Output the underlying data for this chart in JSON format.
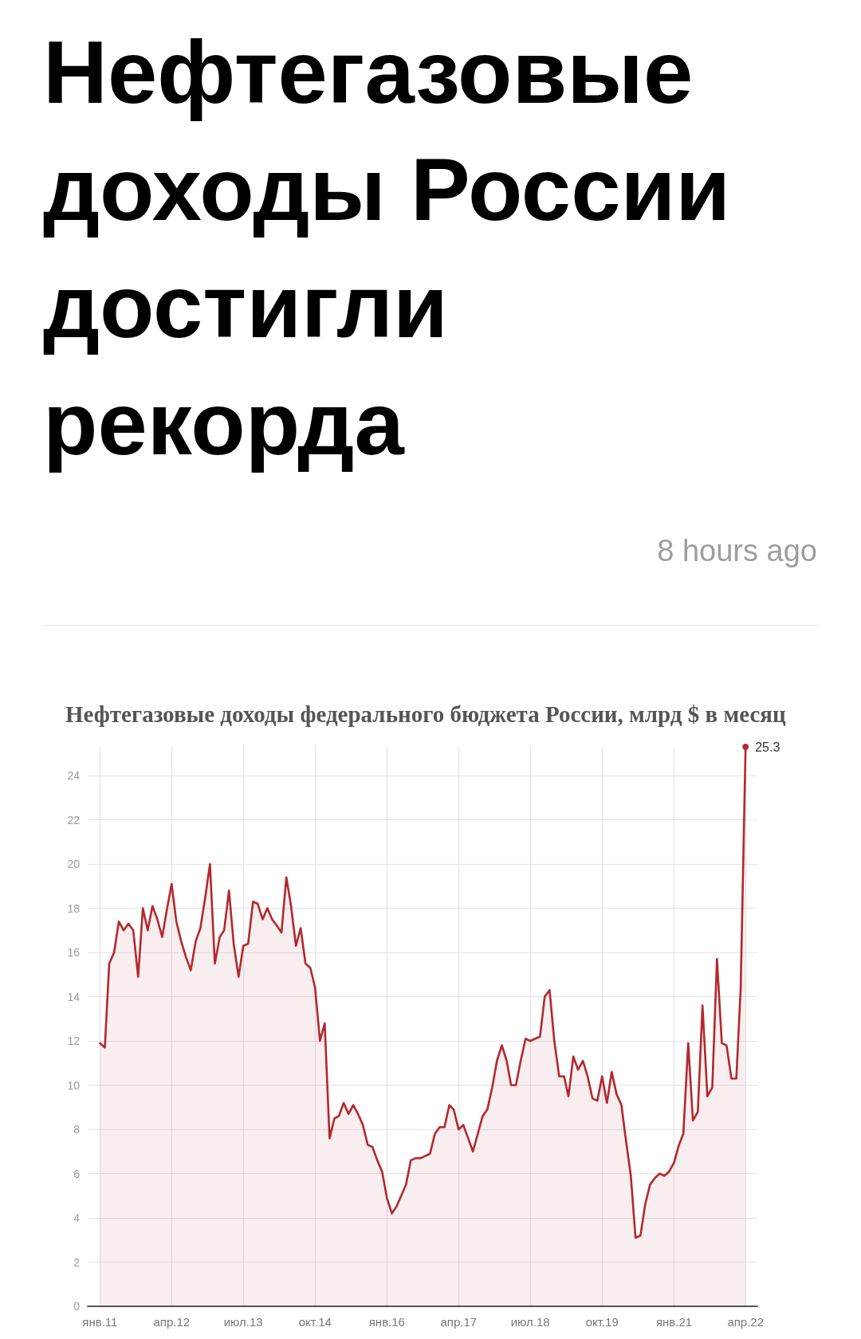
{
  "chart_data": {
    "type": "area",
    "title": "Нефтегазовые доходы России достигли рекорда",
    "subtitle": "Нефтегазовые доходы федерального бюджета России, млрд $ в месяц",
    "annotations": [
      "8 hours ago"
    ],
    "x": [
      "2011-01",
      "2011-02",
      "2011-03",
      "2011-04",
      "2011-05",
      "2011-06",
      "2011-07",
      "2011-08",
      "2011-09",
      "2011-10",
      "2011-11",
      "2011-12",
      "2012-01",
      "2012-02",
      "2012-03",
      "2012-04",
      "2012-05",
      "2012-06",
      "2012-07",
      "2012-08",
      "2012-09",
      "2012-10",
      "2012-11",
      "2012-12",
      "2013-01",
      "2013-02",
      "2013-03",
      "2013-04",
      "2013-05",
      "2013-06",
      "2013-07",
      "2013-08",
      "2013-09",
      "2013-10",
      "2013-11",
      "2013-12",
      "2014-01",
      "2014-02",
      "2014-03",
      "2014-04",
      "2014-05",
      "2014-06",
      "2014-07",
      "2014-08",
      "2014-09",
      "2014-10",
      "2014-11",
      "2014-12",
      "2015-01",
      "2015-02",
      "2015-03",
      "2015-04",
      "2015-05",
      "2015-06",
      "2015-07",
      "2015-08",
      "2015-09",
      "2015-10",
      "2015-11",
      "2015-12",
      "2016-01",
      "2016-02",
      "2016-03",
      "2016-04",
      "2016-05",
      "2016-06",
      "2016-07",
      "2016-08",
      "2016-09",
      "2016-10",
      "2016-11",
      "2016-12",
      "2017-01",
      "2017-02",
      "2017-03",
      "2017-04",
      "2017-05",
      "2017-06",
      "2017-07",
      "2017-08",
      "2017-09",
      "2017-10",
      "2017-11",
      "2017-12",
      "2018-01",
      "2018-02",
      "2018-03",
      "2018-04",
      "2018-05",
      "2018-06",
      "2018-07",
      "2018-08",
      "2018-09",
      "2018-10",
      "2018-11",
      "2018-12",
      "2019-01",
      "2019-02",
      "2019-03",
      "2019-04",
      "2019-05",
      "2019-06",
      "2019-07",
      "2019-08",
      "2019-09",
      "2019-10",
      "2019-11",
      "2019-12",
      "2020-01",
      "2020-02",
      "2020-03",
      "2020-04",
      "2020-05",
      "2020-06",
      "2020-07",
      "2020-08",
      "2020-09",
      "2020-10",
      "2020-11",
      "2020-12",
      "2021-01",
      "2021-02",
      "2021-03",
      "2021-04",
      "2021-05",
      "2021-06",
      "2021-07",
      "2021-08",
      "2021-09",
      "2021-10",
      "2021-11",
      "2021-12",
      "2022-01",
      "2022-02",
      "2022-03",
      "2022-04"
    ],
    "series": [
      {
        "color": "#b3282d",
        "values": [
          11.9,
          11.7,
          15.5,
          16.0,
          17.4,
          17.0,
          17.3,
          17.0,
          14.9,
          18.0,
          17.0,
          18.1,
          17.5,
          16.7,
          17.9,
          19.1,
          17.4,
          16.5,
          15.8,
          15.2,
          16.5,
          17.1,
          18.5,
          20.0,
          15.5,
          16.7,
          17.0,
          18.8,
          16.4,
          14.9,
          16.3,
          16.4,
          18.3,
          18.2,
          17.5,
          18.0,
          17.5,
          17.2,
          16.9,
          19.4,
          18.1,
          16.3,
          17.1,
          15.5,
          15.3,
          14.4,
          12.0,
          12.8,
          7.6,
          8.5,
          8.6,
          9.2,
          8.7,
          9.1,
          8.7,
          8.2,
          7.3,
          7.2,
          6.6,
          6.1,
          4.9,
          4.2,
          4.5,
          5.0,
          5.5,
          6.6,
          6.7,
          6.7,
          6.8,
          6.9,
          7.8,
          8.1,
          8.1,
          9.1,
          8.9,
          8.0,
          8.2,
          7.6,
          7.0,
          7.8,
          8.6,
          8.9,
          9.9,
          11.1,
          11.8,
          11.1,
          10.0,
          10.0,
          11.1,
          12.1,
          12.0,
          12.1,
          12.2,
          14.0,
          14.3,
          12.0,
          10.4,
          10.4,
          9.5,
          11.3,
          10.7,
          11.1,
          10.4,
          9.4,
          9.3,
          10.4,
          9.2,
          10.6,
          9.6,
          9.1,
          7.5,
          5.9,
          3.1,
          3.2,
          4.6,
          5.5,
          5.8,
          6.0,
          5.9,
          6.1,
          6.5,
          7.3,
          7.8,
          11.9,
          8.4,
          8.8,
          13.6,
          9.5,
          9.9,
          15.7,
          11.9,
          11.8,
          10.3,
          10.3,
          14.4,
          25.3
        ],
        "value_labels": [
          null,
          null,
          null,
          null,
          null,
          null,
          null,
          null,
          null,
          null,
          null,
          null,
          null,
          null,
          null,
          null,
          null,
          null,
          null,
          null,
          null,
          null,
          null,
          null,
          null,
          null,
          null,
          null,
          null,
          null,
          null,
          null,
          null,
          null,
          null,
          null,
          null,
          null,
          null,
          null,
          null,
          null,
          null,
          null,
          null,
          null,
          null,
          null,
          null,
          null,
          null,
          null,
          null,
          null,
          null,
          null,
          null,
          null,
          null,
          null,
          null,
          null,
          null,
          null,
          null,
          null,
          null,
          null,
          null,
          null,
          null,
          null,
          null,
          null,
          null,
          null,
          null,
          null,
          null,
          null,
          null,
          null,
          null,
          null,
          null,
          null,
          null,
          null,
          null,
          null,
          null,
          null,
          null,
          null,
          null,
          null,
          null,
          null,
          null,
          null,
          null,
          null,
          null,
          null,
          null,
          null,
          null,
          null,
          null,
          null,
          null,
          null,
          null,
          null,
          null,
          null,
          null,
          null,
          null,
          null,
          null,
          null,
          null,
          null,
          null,
          null,
          null,
          null,
          null,
          null,
          null,
          null,
          null,
          null,
          null,
          "25.3"
        ]
      }
    ],
    "xlim": [
      "2010-10-15",
      "2022-06-15"
    ],
    "xticks": [
      {
        "value": "2011-01",
        "label": "янв.11"
      },
      {
        "value": "2012-04",
        "label": "апр.12"
      },
      {
        "value": "2013-07",
        "label": "июл.13"
      },
      {
        "value": "2014-10",
        "label": "окт.14"
      },
      {
        "value": "2016-01",
        "label": "янв.16"
      },
      {
        "value": "2017-04",
        "label": "апр.17"
      },
      {
        "value": "2018-07",
        "label": "июл.18"
      },
      {
        "value": "2019-10",
        "label": "окт.19"
      },
      {
        "value": "2021-01",
        "label": "янв.21"
      },
      {
        "value": "2022-04",
        "label": "апр.22"
      }
    ],
    "ylim": [
      0,
      25.3
    ],
    "yticks": [
      0,
      2,
      4,
      6,
      8,
      10,
      12,
      14,
      16,
      18,
      20,
      22,
      24
    ],
    "grid": true
  }
}
